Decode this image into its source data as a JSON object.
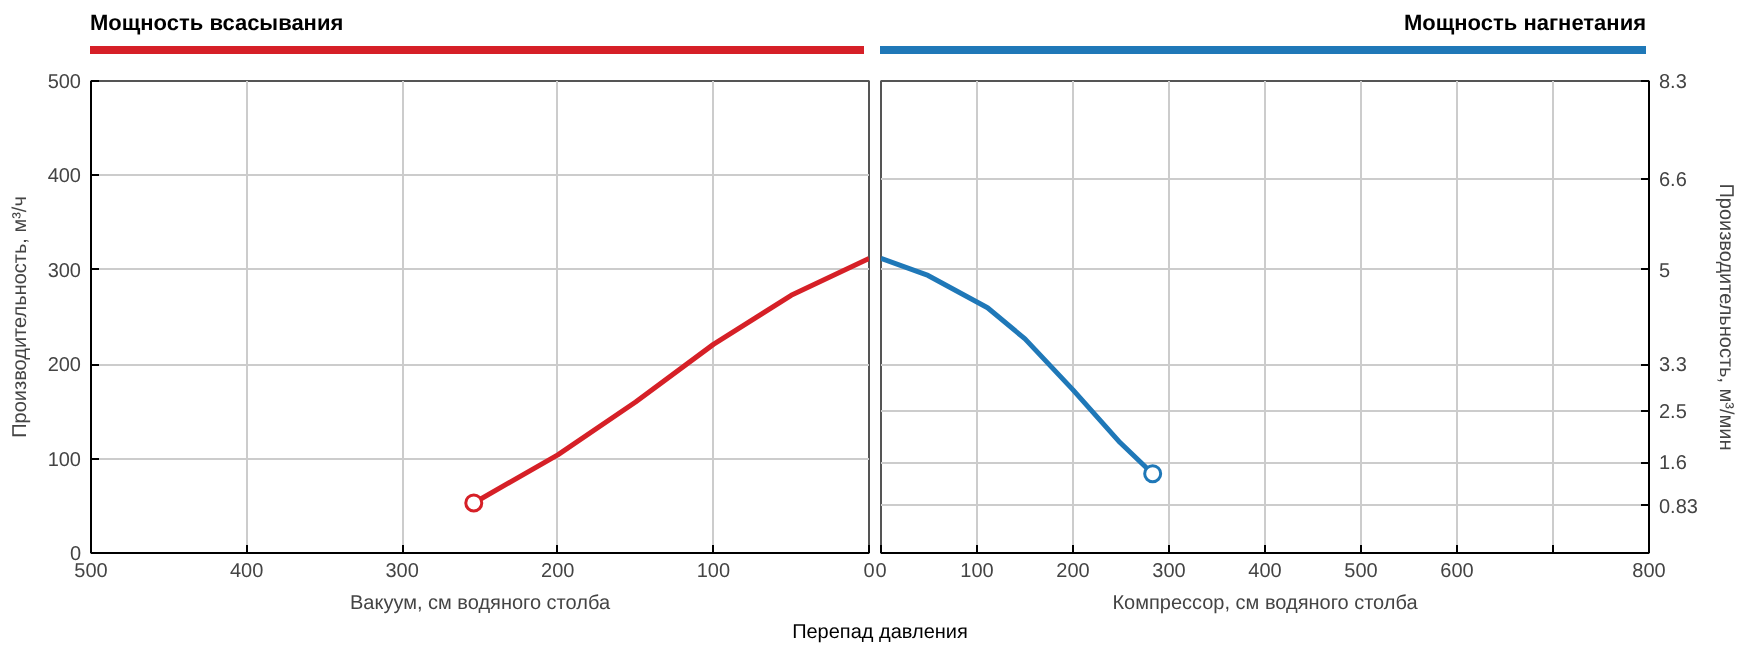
{
  "chart_data": [
    {
      "type": "line",
      "title": "Мощность всасывания",
      "xlabel": "Вакуум, см водяного столба",
      "ylabel": "Производительность, м³/ч",
      "xlim": [
        500,
        0
      ],
      "xticks": [
        500,
        400,
        300,
        200,
        100,
        0
      ],
      "ylim": [
        0,
        500
      ],
      "yticks": [
        0,
        100,
        200,
        300,
        400,
        500
      ],
      "grid": true,
      "series": [
        {
          "color": "#d62027",
          "x": [
            254,
            200,
            150,
            100,
            50,
            0
          ],
          "values": [
            53,
            104,
            160,
            221,
            273,
            312
          ]
        },
        {
          "type": "scatter",
          "marker": "circle",
          "color": "#d62027",
          "x": [
            254
          ],
          "values": [
            53
          ]
        }
      ]
    },
    {
      "type": "line",
      "title": "Мощность нагнетания",
      "xlabel": "Компрессор, см водяного столба",
      "y2label": "Производительность, м³/мин",
      "xlim": [
        0,
        800
      ],
      "xticks": [
        0,
        100,
        200,
        300,
        400,
        500,
        600,
        {
          "value": 700,
          "label": null
        },
        800
      ],
      "y2lim": [
        0,
        8.333
      ],
      "y2ticks": [
        {
          "value": 0.833,
          "label": "0.83"
        },
        1.6,
        2.5,
        {
          "value": 3.333,
          "label": "3.3"
        },
        5,
        6.6,
        {
          "value": 8.333,
          "label": "8.3"
        }
      ],
      "grid": true,
      "annotations": [
        "Перепад давления"
      ],
      "series": [
        {
          "color": "#1f78b8",
          "axis": "y2",
          "x": [
            0,
            49,
            111,
            150,
            200,
            249,
            283
          ],
          "values": [
            5.2,
            4.9,
            4.33,
            3.78,
            2.88,
            1.95,
            1.4
          ]
        },
        {
          "type": "scatter",
          "marker": "circle",
          "axis": "y2",
          "color": "#1f78b8",
          "x": [
            283
          ],
          "values": [
            1.4
          ]
        }
      ]
    }
  ]
}
